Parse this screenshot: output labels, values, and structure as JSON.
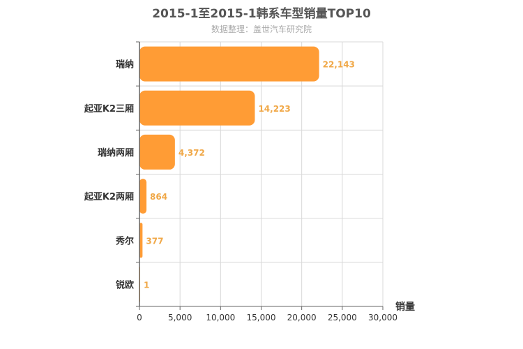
{
  "chart_data": {
    "type": "bar",
    "orientation": "horizontal",
    "title": "2015-1至2015-1韩系车型销量TOP10",
    "subtitle": "数据整理：盖世汽车研究院",
    "categories": [
      "瑞纳",
      "起亚K2三厢",
      "瑞纳两厢",
      "起亚K2两厢",
      "秀尔",
      "锐欧"
    ],
    "values": [
      22143,
      14223,
      4372,
      864,
      377,
      1
    ],
    "value_labels": [
      "22,143",
      "14,223",
      "4,372",
      "864",
      "377",
      "1"
    ],
    "xlabel": "销量",
    "ylabel": "",
    "xlim": [
      0,
      30000
    ],
    "ticks": [
      0,
      5000,
      10000,
      15000,
      20000,
      25000,
      30000
    ],
    "tick_labels": [
      "0",
      "5,000",
      "10,000",
      "15,000",
      "20,000",
      "25,000",
      "30,000"
    ],
    "grid": true,
    "bar_color": "#ff9c35",
    "value_label_color": "#f0a848"
  }
}
